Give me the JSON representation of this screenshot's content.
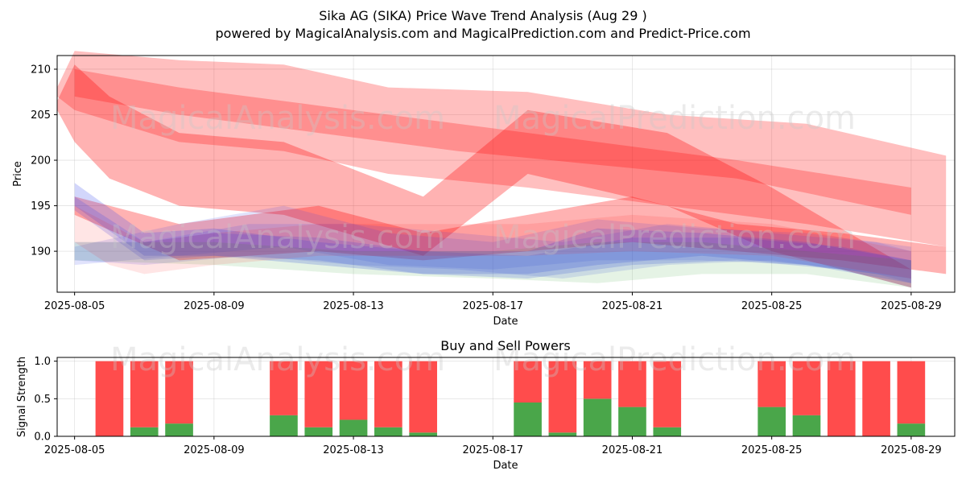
{
  "title_line1": "Sika AG (SIKA) Price Wave Trend Analysis (Aug 29 )",
  "title_line2": "powered by MagicalAnalysis.com and MagicalPrediction.com and Predict-Price.com",
  "watermarks": [
    "MagicalAnalysis.com",
    "MagicalPrediction.com"
  ],
  "colors": {
    "red": "#ff0000",
    "blue": "#3344ee",
    "green": "#2a9a2a",
    "buy": "#4aa64a",
    "sell": "#ff4c4c"
  },
  "chart_data": [
    {
      "type": "area",
      "title": "",
      "xlabel": "Date",
      "ylabel": "Price",
      "xlim": [
        "2025-08-04 12:00",
        "2025-08-30 06:00"
      ],
      "ylim": [
        185.5,
        211.5
      ],
      "yticks": [
        190,
        195,
        200,
        205,
        210
      ],
      "xticks": [
        "2025-08-05",
        "2025-08-09",
        "2025-08-13",
        "2025-08-17",
        "2025-08-21",
        "2025-08-25",
        "2025-08-29"
      ],
      "series": [
        {
          "name": "red-wave-1",
          "color": "red",
          "alpha": 0.3,
          "x": [
            "2025-08-04 12:00",
            "2025-08-05",
            "2025-08-06",
            "2025-08-08",
            "2025-08-11",
            "2025-08-15",
            "2025-08-18",
            "2025-08-22",
            "2025-08-25",
            "2025-08-29"
          ],
          "upper": [
            206.5,
            210.5,
            207,
            203,
            202,
            196,
            205.5,
            203,
            197,
            188
          ],
          "lower": [
            205.5,
            202,
            198,
            195,
            194,
            189.5,
            198.5,
            195,
            190,
            186
          ]
        },
        {
          "name": "red-wave-2",
          "color": "red",
          "alpha": 0.25,
          "x": [
            "2025-08-04 12:00",
            "2025-08-05",
            "2025-08-08",
            "2025-08-11",
            "2025-08-14",
            "2025-08-18",
            "2025-08-22",
            "2025-08-26",
            "2025-08-30"
          ],
          "upper": [
            208,
            212,
            211,
            210.5,
            208,
            207.5,
            205,
            204,
            200.5
          ],
          "lower": [
            207,
            205.5,
            202,
            201,
            198.5,
            197,
            195,
            193,
            190.5
          ]
        },
        {
          "name": "red-wave-3",
          "color": "red",
          "alpha": 0.25,
          "x": [
            "2025-08-05",
            "2025-08-08",
            "2025-08-12",
            "2025-08-16",
            "2025-08-20",
            "2025-08-24",
            "2025-08-29"
          ],
          "upper": [
            210,
            208,
            206,
            204,
            202,
            200,
            197
          ],
          "lower": [
            207,
            205,
            203,
            201,
            199.5,
            198,
            194
          ]
        },
        {
          "name": "red-wave-4",
          "color": "red",
          "alpha": 0.3,
          "x": [
            "2025-08-05",
            "2025-08-08",
            "2025-08-12",
            "2025-08-15",
            "2025-08-18",
            "2025-08-21",
            "2025-08-24",
            "2025-08-27",
            "2025-08-30"
          ],
          "upper": [
            196,
            193,
            195,
            192,
            194,
            196,
            193,
            192,
            190.5
          ],
          "lower": [
            194,
            189,
            190,
            189,
            190,
            191,
            190,
            189,
            187.5
          ]
        },
        {
          "name": "blue-wave-1",
          "color": "blue",
          "alpha": 0.22,
          "x": [
            "2025-08-05",
            "2025-08-07",
            "2025-08-09",
            "2025-08-12",
            "2025-08-15",
            "2025-08-18",
            "2025-08-20",
            "2025-08-23",
            "2025-08-26",
            "2025-08-29"
          ],
          "upper": [
            197.5,
            192,
            192.5,
            191,
            190,
            190,
            192.5,
            192,
            191,
            189
          ],
          "lower": [
            195,
            189.5,
            189.5,
            188.5,
            187.5,
            187.5,
            188.5,
            189.5,
            188.5,
            186.5
          ]
        },
        {
          "name": "blue-wave-2",
          "color": "blue",
          "alpha": 0.2,
          "x": [
            "2025-08-05",
            "2025-08-07",
            "2025-08-09",
            "2025-08-12",
            "2025-08-15",
            "2025-08-18",
            "2025-08-21",
            "2025-08-24",
            "2025-08-27",
            "2025-08-29"
          ],
          "upper": [
            196,
            191,
            192,
            191.5,
            190,
            189.5,
            191.5,
            191.5,
            190.5,
            189
          ],
          "lower": [
            194.5,
            189,
            189.5,
            189,
            187.5,
            187,
            188.5,
            189,
            188,
            186
          ]
        },
        {
          "name": "blue-wave-3",
          "color": "blue",
          "alpha": 0.15,
          "x": [
            "2025-08-05",
            "2025-08-07",
            "2025-08-10",
            "2025-08-13",
            "2025-08-16",
            "2025-08-19",
            "2025-08-22",
            "2025-08-25",
            "2025-08-28",
            "2025-08-29"
          ],
          "upper": [
            191,
            191,
            193,
            193,
            192,
            191,
            193,
            192,
            191,
            190
          ],
          "lower": [
            189,
            188.5,
            189.5,
            188.5,
            188,
            187,
            188.5,
            189,
            187.5,
            186.5
          ]
        },
        {
          "name": "blue-wave-4",
          "color": "blue",
          "alpha": 0.15,
          "x": [
            "2025-08-05",
            "2025-08-08",
            "2025-08-11",
            "2025-08-14",
            "2025-08-17",
            "2025-08-20",
            "2025-08-23",
            "2025-08-26",
            "2025-08-29"
          ],
          "upper": [
            190.5,
            193,
            195,
            192,
            191,
            193.5,
            192.5,
            192,
            190.5
          ],
          "lower": [
            188.5,
            189.5,
            190.5,
            188.5,
            188,
            189,
            189,
            188.5,
            187
          ]
        },
        {
          "name": "green-wave-1",
          "color": "green",
          "alpha": 0.12,
          "x": [
            "2025-08-05",
            "2025-08-09",
            "2025-08-13",
            "2025-08-17",
            "2025-08-20",
            "2025-08-23",
            "2025-08-26",
            "2025-08-29"
          ],
          "upper": [
            191,
            191,
            190,
            190,
            191,
            191,
            190,
            189
          ],
          "lower": [
            189,
            188.5,
            187.5,
            187,
            186.5,
            187.5,
            187.5,
            186
          ]
        },
        {
          "name": "pink-wave-1",
          "color": "red",
          "alpha": 0.1,
          "x": [
            "2025-08-05",
            "2025-08-06",
            "2025-08-07",
            "2025-08-09",
            "2025-08-12",
            "2025-08-15",
            "2025-08-18",
            "2025-08-21",
            "2025-08-25",
            "2025-08-29"
          ],
          "upper": [
            195,
            193,
            191,
            192,
            193,
            193,
            193,
            194,
            193,
            190
          ],
          "lower": [
            191,
            188.5,
            187.5,
            188.5,
            189.5,
            189.5,
            189.5,
            190,
            189.5,
            187
          ]
        }
      ]
    },
    {
      "type": "bar",
      "title": "Buy and Sell Powers",
      "xlabel": "Date",
      "ylabel": "Signal Strength",
      "ylim": [
        0,
        1.05
      ],
      "yticks": [
        0.0,
        0.5,
        1.0
      ],
      "ytick_labels": [
        "0.0",
        "0.5",
        "1.0"
      ],
      "xticks": [
        "2025-08-05",
        "2025-08-09",
        "2025-08-13",
        "2025-08-17",
        "2025-08-21",
        "2025-08-25",
        "2025-08-29"
      ],
      "xlim": [
        "2025-08-04 12:00",
        "2025-08-30 06:00"
      ],
      "categories": [
        "2025-08-06",
        "2025-08-07",
        "2025-08-08",
        "2025-08-11",
        "2025-08-12",
        "2025-08-13",
        "2025-08-14",
        "2025-08-15",
        "2025-08-18",
        "2025-08-19",
        "2025-08-20",
        "2025-08-21",
        "2025-08-22",
        "2025-08-25",
        "2025-08-26",
        "2025-08-27",
        "2025-08-28",
        "2025-08-29"
      ],
      "series": [
        {
          "name": "Buy",
          "values": [
            0.0,
            0.12,
            0.17,
            0.28,
            0.12,
            0.22,
            0.12,
            0.05,
            0.45,
            0.05,
            0.5,
            0.39,
            0.12,
            0.39,
            0.28,
            0.0,
            0.0,
            0.17
          ]
        },
        {
          "name": "Sell",
          "values": [
            1.0,
            0.88,
            0.83,
            0.72,
            0.88,
            0.78,
            0.88,
            0.95,
            0.55,
            0.95,
            0.5,
            0.61,
            0.88,
            0.61,
            0.72,
            1.0,
            1.0,
            0.83
          ]
        }
      ]
    }
  ]
}
